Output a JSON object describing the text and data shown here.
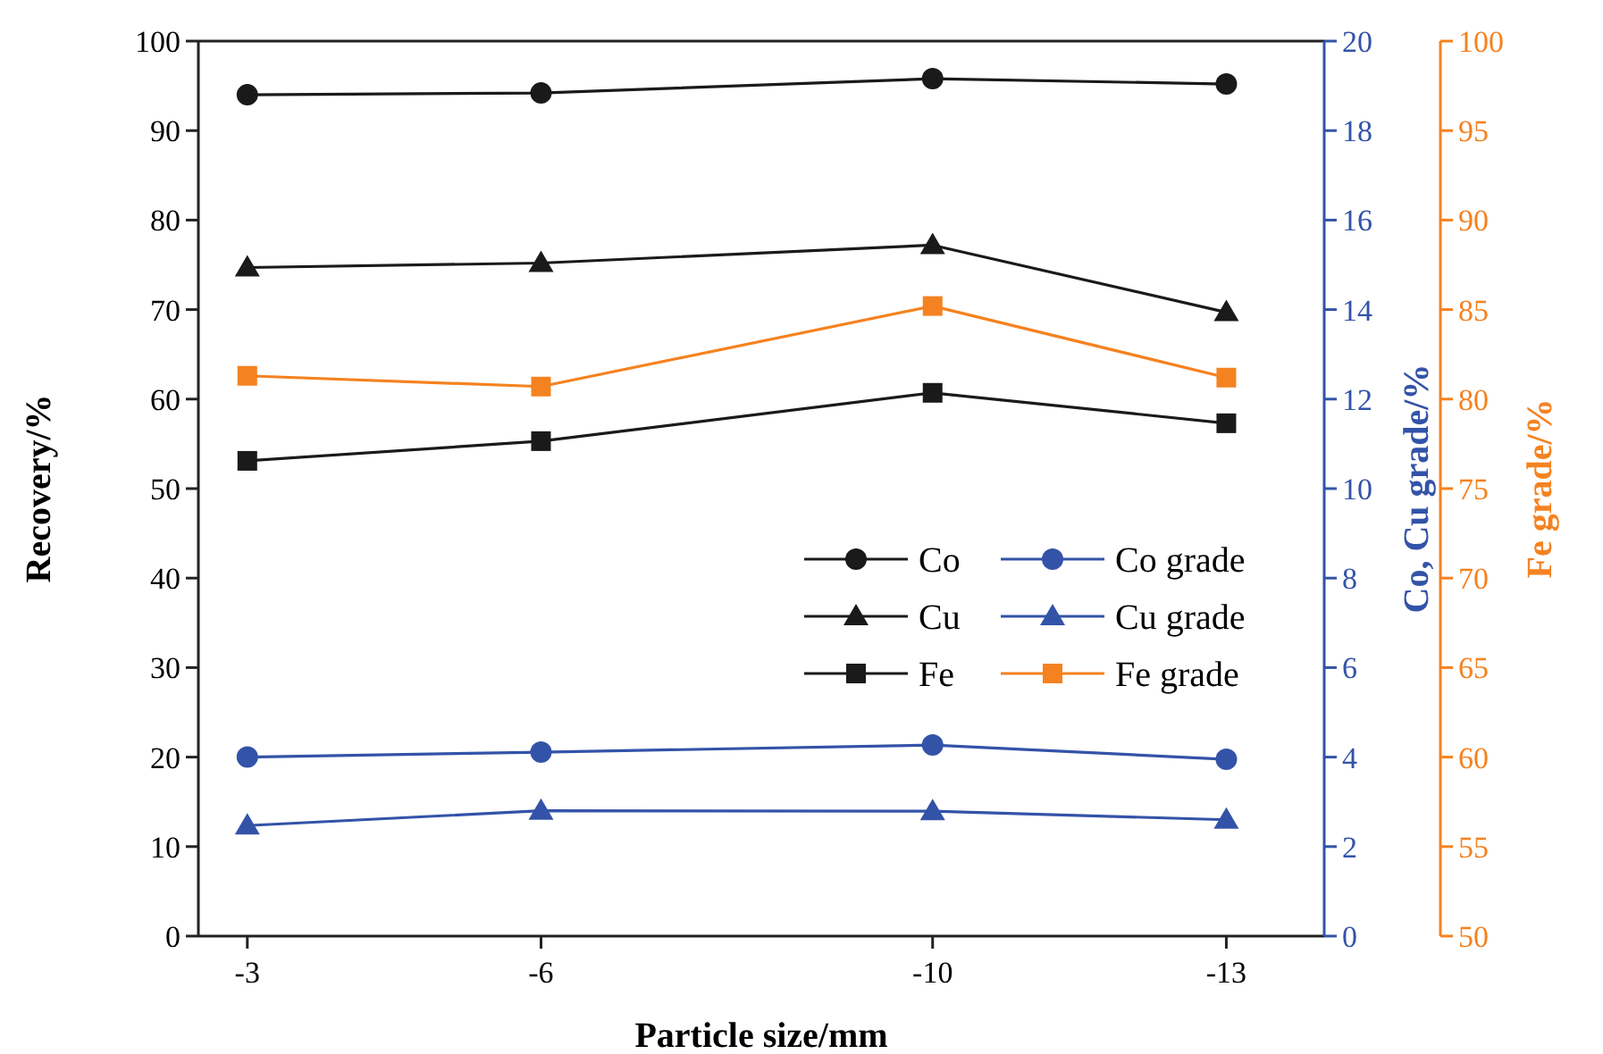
{
  "chart_data": {
    "type": "line",
    "xlabel": "Particle size/mm",
    "ylabel": "Recovery/%",
    "y2label": "Co, Cu grade/%",
    "y3label": "Fe grade/%",
    "x": [
      -3,
      -6,
      -10,
      -13
    ],
    "xlim": [
      -2.5,
      -14
    ],
    "xticks": [
      -3,
      -6,
      -10,
      -13
    ],
    "ylim": [
      0,
      100
    ],
    "yticks": [
      0,
      10,
      20,
      30,
      40,
      50,
      60,
      70,
      80,
      90,
      100
    ],
    "y2lim": [
      0,
      20
    ],
    "y2ticks": [
      0,
      2,
      4,
      6,
      8,
      10,
      12,
      14,
      16,
      18,
      20
    ],
    "y3lim": [
      50,
      100
    ],
    "y3ticks": [
      50,
      55,
      60,
      65,
      70,
      75,
      80,
      85,
      90,
      95,
      100
    ],
    "legend": "right",
    "grid": false,
    "series": [
      {
        "name": "Co",
        "color": "#1a1a1a",
        "marker": "circle",
        "values": [
          94.0,
          94.2,
          95.8,
          95.2
        ]
      },
      {
        "name": "Cu",
        "color": "#1a1a1a",
        "marker": "triangle",
        "values": [
          74.7,
          75.2,
          77.2,
          69.7
        ]
      },
      {
        "name": "Fe",
        "color": "#1a1a1a",
        "marker": "square",
        "values": [
          53.1,
          55.3,
          60.7,
          57.3
        ]
      },
      {
        "name": "Co grade",
        "color": "#3353a8",
        "marker": "circle",
        "axis": "y2",
        "values": [
          4.0,
          4.11,
          4.27,
          3.95
        ]
      },
      {
        "name": "Cu grade",
        "color": "#3353a8",
        "marker": "triangle",
        "axis": "y2",
        "values": [
          2.47,
          2.8,
          2.79,
          2.6
        ]
      },
      {
        "name": "Fe grade",
        "color": "#f58220",
        "marker": "square",
        "axis": "y3",
        "values": [
          81.3,
          80.7,
          85.2,
          81.2
        ]
      }
    ]
  }
}
